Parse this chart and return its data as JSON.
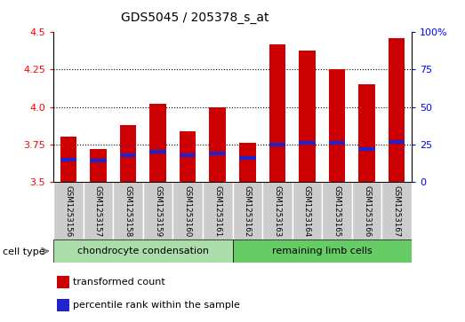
{
  "title": "GDS5045 / 205378_s_at",
  "samples": [
    "GSM1253156",
    "GSM1253157",
    "GSM1253158",
    "GSM1253159",
    "GSM1253160",
    "GSM1253161",
    "GSM1253162",
    "GSM1253163",
    "GSM1253164",
    "GSM1253165",
    "GSM1253166",
    "GSM1253167"
  ],
  "transformed_counts": [
    3.8,
    3.72,
    3.88,
    4.02,
    3.84,
    4.0,
    3.76,
    4.42,
    4.38,
    4.25,
    4.15,
    4.46
  ],
  "percentile_ranks": [
    15,
    14,
    18,
    20,
    18,
    19,
    16,
    25,
    26,
    26,
    22,
    27
  ],
  "ylim_left": [
    3.5,
    4.5
  ],
  "ylim_right": [
    0,
    100
  ],
  "yticks_left": [
    3.5,
    3.75,
    4.0,
    4.25,
    4.5
  ],
  "yticks_right": [
    0,
    25,
    50,
    75,
    100
  ],
  "bar_color": "#cc0000",
  "percentile_color": "#2222cc",
  "dotted_gridlines": [
    3.75,
    4.0,
    4.25
  ],
  "cell_types": [
    {
      "label": "chondrocyte condensation",
      "start": 0,
      "end": 6,
      "color": "#aaddaa"
    },
    {
      "label": "remaining limb cells",
      "start": 6,
      "end": 12,
      "color": "#66cc66"
    }
  ],
  "cell_type_label": "cell type",
  "legend_items": [
    {
      "label": "transformed count",
      "color": "#cc0000"
    },
    {
      "label": "percentile rank within the sample",
      "color": "#2222cc"
    }
  ],
  "tick_bg": "#cccccc",
  "base_value": 3.5,
  "bar_width": 0.55
}
